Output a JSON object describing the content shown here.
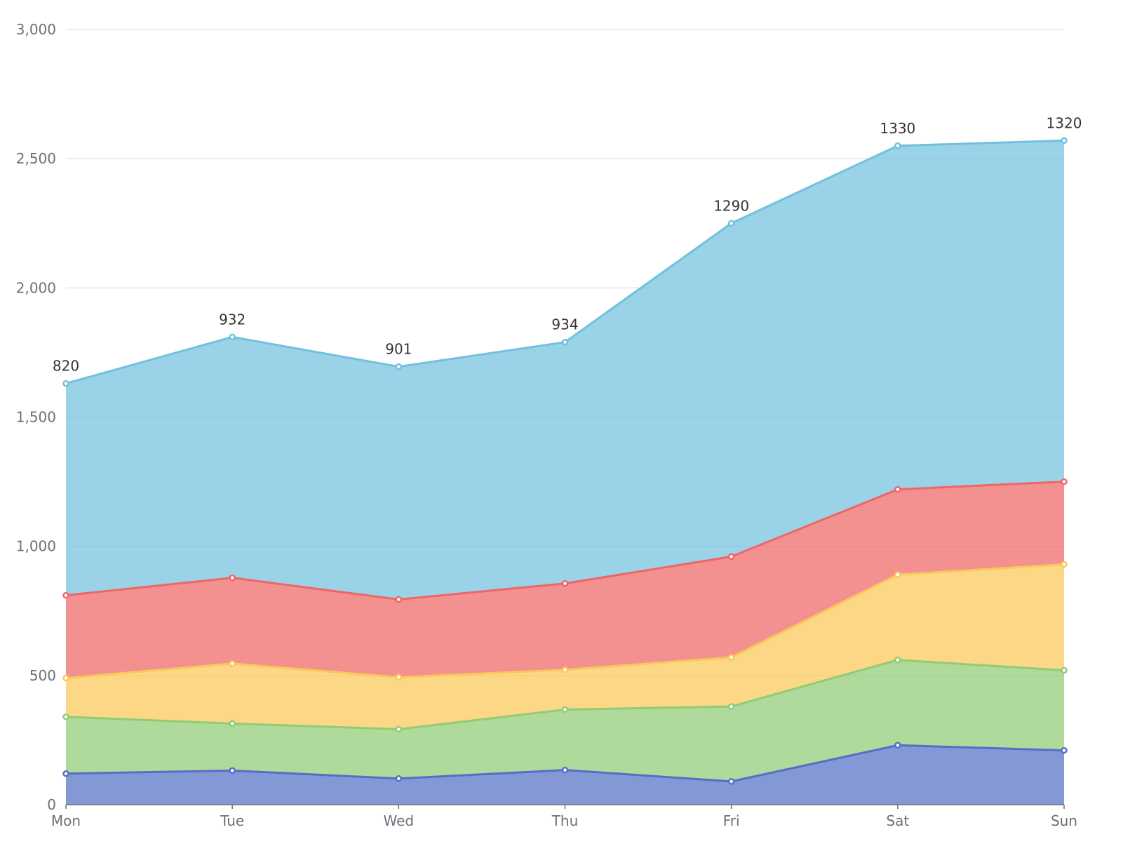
{
  "chart_data": {
    "type": "area",
    "stacked": true,
    "categories": [
      "Mon",
      "Tue",
      "Wed",
      "Thu",
      "Fri",
      "Sat",
      "Sun"
    ],
    "series": [
      {
        "values": [
          120,
          132,
          101,
          134,
          90,
          230,
          210
        ],
        "color": "#5470c6"
      },
      {
        "values": [
          220,
          182,
          191,
          234,
          290,
          330,
          310
        ],
        "color": "#91cc75"
      },
      {
        "values": [
          150,
          232,
          201,
          154,
          190,
          330,
          410
        ],
        "color": "#fac858"
      },
      {
        "values": [
          320,
          332,
          301,
          334,
          390,
          330,
          320
        ],
        "color": "#ee6666"
      },
      {
        "values": [
          820,
          932,
          901,
          934,
          1290,
          1330,
          1320
        ],
        "color": "#73c0de",
        "labels": [
          "820",
          "932",
          "901",
          "934",
          "1290",
          "1330",
          "1320"
        ]
      }
    ],
    "y_ticks": [
      "0",
      "500",
      "1,000",
      "1,500",
      "2,000",
      "2,500",
      "3,000"
    ],
    "ylim": [
      0,
      3000
    ],
    "grid": true
  }
}
